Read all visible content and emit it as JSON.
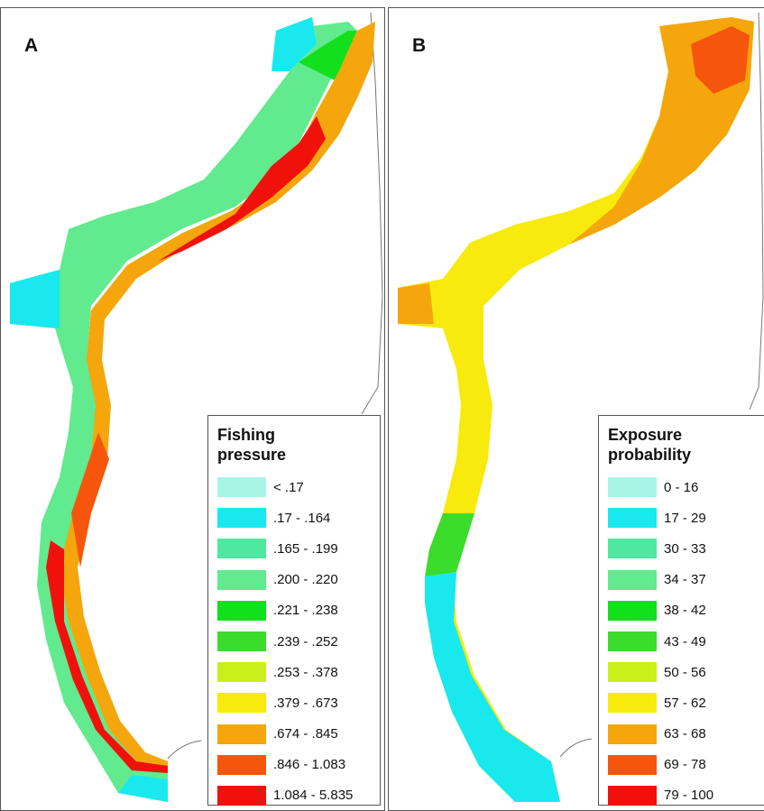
{
  "panels": [
    {
      "label": "A",
      "legend": {
        "title_line1": "Fishing",
        "title_line2": "pressure",
        "items": [
          {
            "label": "< .17",
            "color": "#a8f5e6"
          },
          {
            "label": ".17 - .164",
            "color": "#19e8ef"
          },
          {
            "label": ".165 - .199",
            "color": "#4fe8a0"
          },
          {
            "label": ".200 - .220",
            "color": "#61ea8e"
          },
          {
            "label": ".221 - .238",
            "color": "#13e01c"
          },
          {
            "label": ".239 - .252",
            "color": "#3cdc2c"
          },
          {
            "label": ".253 - .378",
            "color": "#c9f01b"
          },
          {
            "label": ".379 - .673",
            "color": "#f7ea0c"
          },
          {
            "label": ".674 - .845",
            "color": "#f5a60c"
          },
          {
            "label": ".846 - 1.083",
            "color": "#f5560c"
          },
          {
            "label": "1.084 - 5.835",
            "color": "#f1110c"
          }
        ]
      }
    },
    {
      "label": "B",
      "legend": {
        "title_line1": "Exposure",
        "title_line2": "probability",
        "items": [
          {
            "label": "0 - 16",
            "color": "#a8f5e6"
          },
          {
            "label": "17 - 29",
            "color": "#19e8ef"
          },
          {
            "label": "30 - 33",
            "color": "#4fe8a0"
          },
          {
            "label": "34 - 37",
            "color": "#61ea8e"
          },
          {
            "label": "38 - 42",
            "color": "#13e01c"
          },
          {
            "label": "43 - 49",
            "color": "#3cdc2c"
          },
          {
            "label": "50 - 56",
            "color": "#c9f01b"
          },
          {
            "label": "57 - 62",
            "color": "#f7ea0c"
          },
          {
            "label": "63 - 68",
            "color": "#f5a60c"
          },
          {
            "label": "69 - 78",
            "color": "#f5560c"
          },
          {
            "label": "79 - 100",
            "color": "#f1110c"
          }
        ]
      }
    }
  ]
}
